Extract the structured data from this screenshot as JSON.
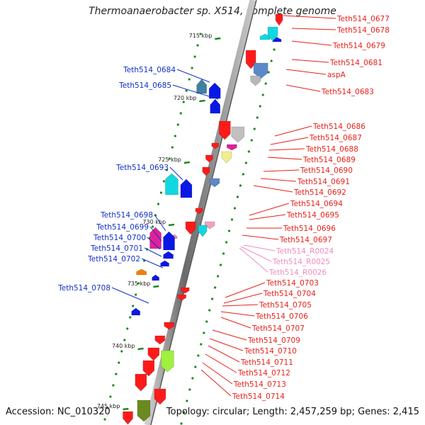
{
  "title": "Thermoanaerobacter sp. X514, complete genome",
  "footer": {
    "accession": "Accession: NC_010320",
    "topology": "Topology: circular; Length: 2,457,259 bp; Genes: 2,415"
  },
  "ticks": [
    "715 kbp",
    "720 kbp",
    "725 kbp",
    "730 kbp",
    "735 kbp",
    "740 kbp",
    "745 kbp"
  ],
  "colors": {
    "forward_label": "#e8201a",
    "reverse_label": "#1030c8",
    "rna_label": "#f08cc0",
    "cds_forward": "#ff1a1a",
    "cds_reverse": "#0a18e6",
    "backbone": "#7a7a7a"
  },
  "right_labels": [
    "Teth514_0677",
    "Teth514_0678",
    "Teth514_0679",
    "Teth514_0681",
    "aspA",
    "Teth514_0683",
    "Teth514_0686",
    "Teth514_0687",
    "Teth514_0688",
    "Teth514_0689",
    "Teth514_0690",
    "Teth514_0691",
    "Teth514_0692",
    "Teth514_0694",
    "Teth514_0695",
    "Teth514_0696",
    "Teth514_0697",
    "Teth514_R0024",
    "Teth514_R0025",
    "Teth514_R0026",
    "Teth514_0703",
    "Teth514_0704",
    "Teth514_0705",
    "Teth514_0706",
    "Teth514_0707",
    "Teth514_0709",
    "Teth514_0710",
    "Teth514_0711",
    "Teth514_0712",
    "Teth514_0713",
    "Teth514_0714"
  ],
  "left_labels": [
    "Teth514_0684",
    "Teth514_0685",
    "Teth514_0693",
    "Teth514_0698",
    "Teth514_0699",
    "Teth514_0700",
    "Teth514_0701",
    "Teth514_0702",
    "Teth514_0708"
  ]
}
